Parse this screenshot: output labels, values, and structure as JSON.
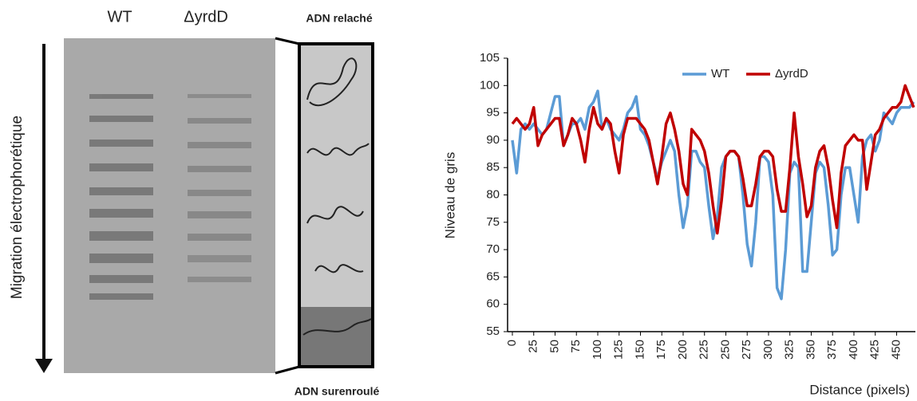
{
  "gel": {
    "lanes": [
      "WT",
      "ΔyrdD"
    ],
    "axis_label": "Migration électrophorétique",
    "top_label": "ADN relaché",
    "bottom_label": "ADN surenroulé"
  },
  "chart_data": {
    "type": "line",
    "x_label": "Distance (pixels)",
    "y_label": "Niveau de gris",
    "x": [
      0,
      5,
      10,
      15,
      20,
      25,
      30,
      35,
      40,
      45,
      50,
      55,
      60,
      65,
      70,
      75,
      80,
      85,
      90,
      95,
      100,
      105,
      110,
      115,
      120,
      125,
      130,
      135,
      140,
      145,
      150,
      155,
      160,
      165,
      170,
      175,
      180,
      185,
      190,
      195,
      200,
      205,
      210,
      215,
      220,
      225,
      230,
      235,
      240,
      245,
      250,
      255,
      260,
      265,
      270,
      275,
      280,
      285,
      290,
      295,
      300,
      305,
      310,
      315,
      320,
      325,
      330,
      335,
      340,
      345,
      350,
      355,
      360,
      365,
      370,
      375,
      380,
      385,
      390,
      395,
      400,
      405,
      410,
      415,
      420,
      425,
      430,
      435,
      440,
      445,
      450,
      455,
      460,
      465,
      470
    ],
    "series": [
      {
        "name": "WT",
        "color": "#5b9bd5",
        "values": [
          90,
          84,
          92,
          93,
          92,
          93,
          92,
          91,
          92,
          95,
          98,
          98,
          89,
          91,
          93,
          93,
          94,
          92,
          96,
          97,
          99,
          92,
          94,
          92,
          91,
          90,
          92,
          95,
          96,
          98,
          92,
          91,
          89,
          86,
          83,
          86,
          88,
          90,
          88,
          80,
          74,
          78,
          88,
          88,
          86,
          85,
          78,
          72,
          76,
          85,
          87,
          88,
          88,
          87,
          80,
          71,
          67,
          75,
          87,
          87,
          86,
          80,
          63,
          61,
          70,
          84,
          86,
          85,
          66,
          66,
          75,
          84,
          86,
          85,
          78,
          69,
          70,
          80,
          85,
          85,
          80,
          75,
          87,
          90,
          91,
          88,
          90,
          95,
          94,
          93,
          95,
          96,
          96,
          96,
          97
        ]
      },
      {
        "name": "ΔyrdD",
        "color": "#c00000",
        "values": [
          93,
          94,
          93,
          92,
          93,
          96,
          89,
          91,
          92,
          93,
          94,
          94,
          89,
          91,
          94,
          93,
          90,
          86,
          92,
          96,
          93,
          92,
          94,
          93,
          88,
          84,
          91,
          94,
          94,
          94,
          93,
          92,
          90,
          86,
          82,
          87,
          93,
          95,
          92,
          88,
          82,
          80,
          92,
          91,
          90,
          88,
          84,
          78,
          73,
          79,
          87,
          88,
          88,
          87,
          83,
          78,
          78,
          82,
          87,
          88,
          88,
          87,
          81,
          77,
          77,
          85,
          95,
          87,
          82,
          76,
          78,
          85,
          88,
          89,
          85,
          79,
          74,
          84,
          89,
          90,
          91,
          90,
          90,
          81,
          86,
          91,
          92,
          94,
          95,
          96,
          96,
          97,
          100,
          98,
          96
        ]
      }
    ],
    "xlim": [
      0,
      472
    ],
    "xticks": [
      0,
      25,
      50,
      75,
      100,
      125,
      150,
      175,
      200,
      225,
      250,
      275,
      300,
      325,
      350,
      375,
      400,
      425,
      450
    ],
    "ylim": [
      55,
      105
    ],
    "yticks": [
      55,
      60,
      65,
      70,
      75,
      80,
      85,
      90,
      95,
      100,
      105
    ],
    "legend": "top"
  }
}
